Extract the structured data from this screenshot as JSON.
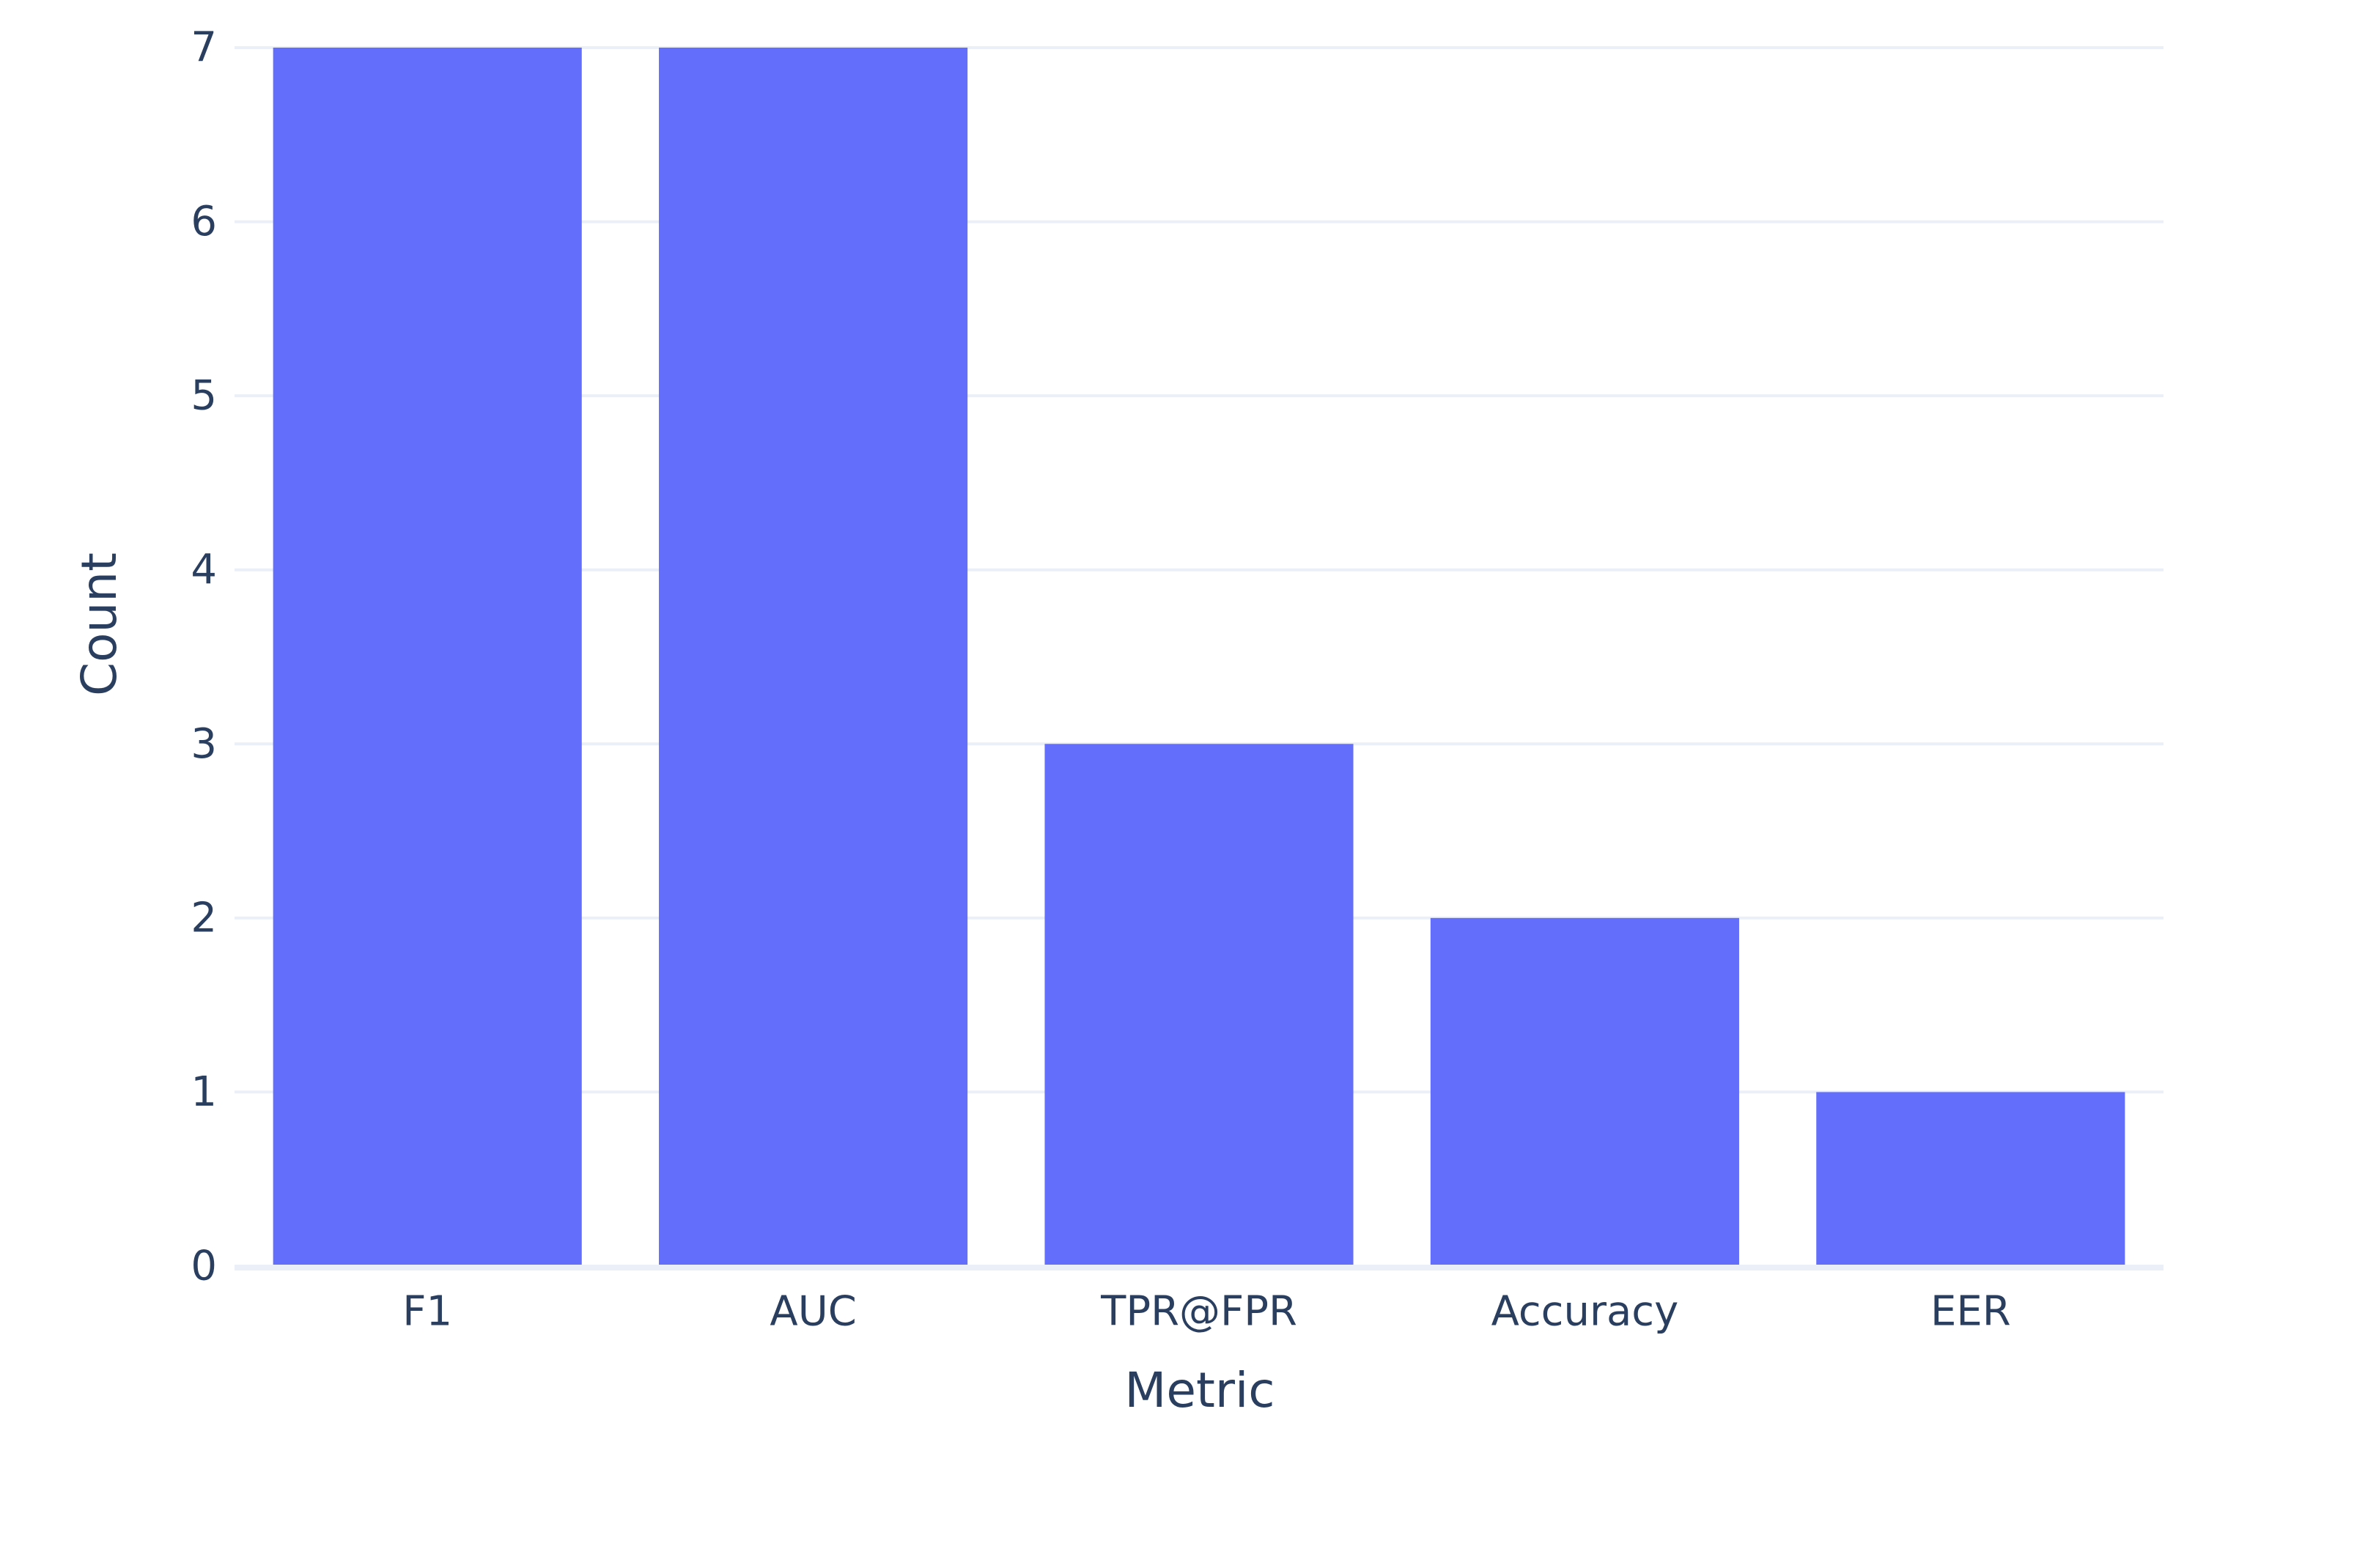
{
  "chart_data": {
    "type": "bar",
    "title": "",
    "xlabel": "Metric",
    "ylabel": "Count",
    "categories": [
      "F1",
      "AUC",
      "TPR@FPR",
      "Accuracy",
      "EER"
    ],
    "values": [
      7,
      7,
      3,
      2,
      1
    ],
    "ylim": [
      0,
      7
    ],
    "yticks": [
      0,
      1,
      2,
      3,
      4,
      5,
      6,
      7
    ],
    "grid": true,
    "legend": "none",
    "colors": {
      "bar": "#636efa",
      "grid": "#ebf0f8",
      "text": "#2a3f5f",
      "background": "#ffffff"
    }
  }
}
